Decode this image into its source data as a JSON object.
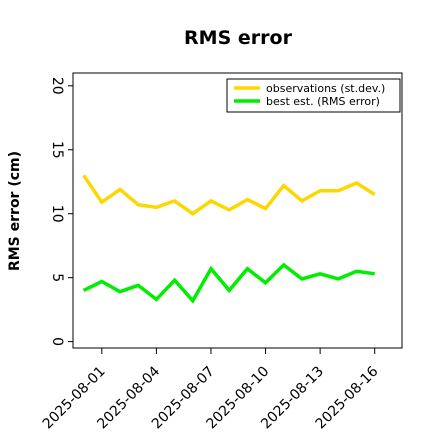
{
  "chart_data": {
    "type": "line",
    "title": "RMS error",
    "xlabel": "",
    "ylabel": "RMS error (cm)",
    "ylim": [
      -0.5,
      21
    ],
    "xlim": [
      "2025-07-30T10:00",
      "2025-08-17T12:00"
    ],
    "yticks": [
      0,
      5,
      10,
      15,
      20
    ],
    "xticks": [
      "2025-08-01",
      "2025-08-04",
      "2025-08-07",
      "2025-08-10",
      "2025-08-13",
      "2025-08-16"
    ],
    "highlight_tick": "2025-08-07",
    "highlight_color": "#228B22",
    "grid": false,
    "legend_position": "top-right",
    "x": [
      "2025-07-31",
      "2025-08-01",
      "2025-08-02",
      "2025-08-03",
      "2025-08-04",
      "2025-08-05",
      "2025-08-06",
      "2025-08-07",
      "2025-08-08",
      "2025-08-09",
      "2025-08-10",
      "2025-08-11",
      "2025-08-12",
      "2025-08-13",
      "2025-08-14",
      "2025-08-15",
      "2025-08-16"
    ],
    "series": [
      {
        "name": "observations (st.dev.)",
        "color": "#FFD700",
        "values": [
          13.0,
          10.9,
          11.9,
          10.7,
          10.5,
          11.0,
          10.0,
          11.0,
          10.3,
          11.1,
          10.4,
          12.2,
          11.0,
          11.8,
          11.8,
          12.4,
          11.5
        ]
      },
      {
        "name": "best est. (RMS error)",
        "color": "#00EE00",
        "values": [
          4.0,
          4.7,
          3.9,
          4.4,
          3.3,
          4.8,
          3.2,
          5.7,
          4.0,
          5.7,
          4.6,
          6.0,
          4.9,
          5.3,
          4.9,
          5.5,
          5.3
        ]
      }
    ]
  }
}
